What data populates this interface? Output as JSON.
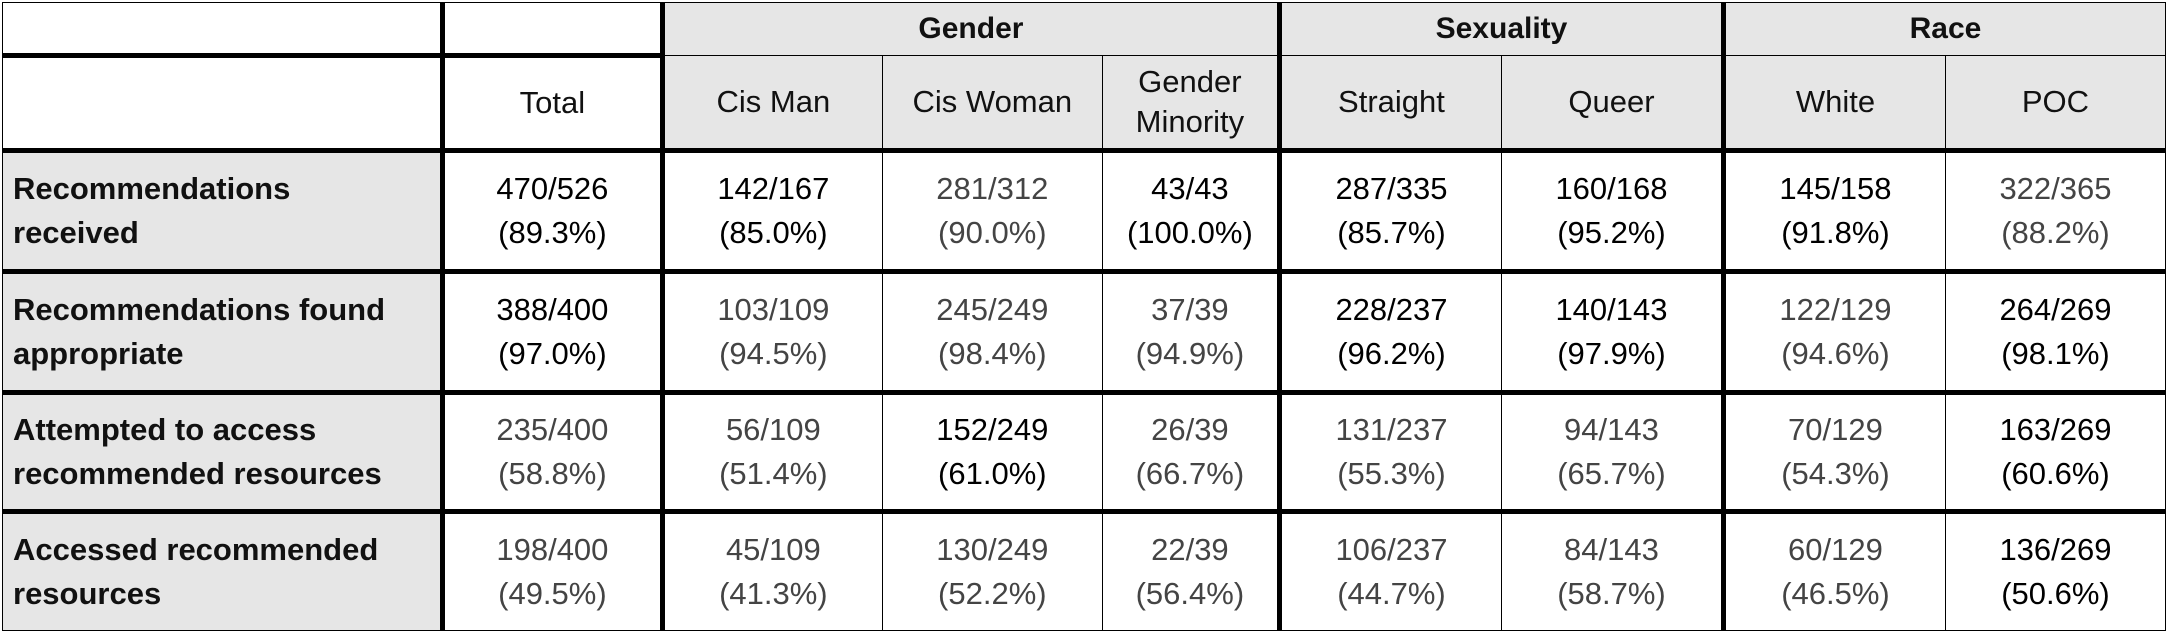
{
  "groups": {
    "gender": "Gender",
    "sexuality": "Sexuality",
    "race": "Race"
  },
  "columns": {
    "total": "Total",
    "cis_man": "Cis Man",
    "cis_woman": "Cis Woman",
    "gender_minority_1": "Gender",
    "gender_minority_2": "Minority",
    "straight": "Straight",
    "queer": "Queer",
    "white": "White",
    "poc": "POC"
  },
  "rows": [
    {
      "label_1": "Recommendations",
      "label_2": "received",
      "cells": [
        {
          "count": "470/526",
          "pct": "(89.3%)"
        },
        {
          "count": "142/167",
          "pct": "(85.0%)"
        },
        {
          "count": "281/312",
          "pct": "(90.0%)"
        },
        {
          "count": "43/43",
          "pct": "(100.0%)"
        },
        {
          "count": "287/335",
          "pct": "(85.7%)"
        },
        {
          "count": "160/168",
          "pct": "(95.2%)"
        },
        {
          "count": "145/158",
          "pct": "(91.8%)"
        },
        {
          "count": "322/365",
          "pct": "(88.2%)"
        }
      ]
    },
    {
      "label_1": "Recommendations found",
      "label_2": "appropriate",
      "cells": [
        {
          "count": "388/400",
          "pct": "(97.0%)"
        },
        {
          "count": "103/109",
          "pct": "(94.5%)"
        },
        {
          "count": "245/249",
          "pct": "(98.4%)"
        },
        {
          "count": "37/39",
          "pct": "(94.9%)"
        },
        {
          "count": "228/237",
          "pct": "(96.2%)"
        },
        {
          "count": "140/143",
          "pct": "(97.9%)"
        },
        {
          "count": "122/129",
          "pct": "(94.6%)"
        },
        {
          "count": "264/269",
          "pct": "(98.1%)"
        }
      ]
    },
    {
      "label_1": "Attempted to access",
      "label_2": "recommended resources",
      "cells": [
        {
          "count": "235/400",
          "pct": "(58.8%)"
        },
        {
          "count": "56/109",
          "pct": "(51.4%)"
        },
        {
          "count": "152/249",
          "pct": "(61.0%)"
        },
        {
          "count": "26/39",
          "pct": "(66.7%)"
        },
        {
          "count": "131/237",
          "pct": "(55.3%)"
        },
        {
          "count": "94/143",
          "pct": "(65.7%)"
        },
        {
          "count": "70/129",
          "pct": "(54.3%)"
        },
        {
          "count": "163/269",
          "pct": "(60.6%)"
        }
      ]
    },
    {
      "label_1": "Accessed recommended",
      "label_2": "resources",
      "cells": [
        {
          "count": "198/400",
          "pct": "(49.5%)"
        },
        {
          "count": "45/109",
          "pct": "(41.3%)"
        },
        {
          "count": "130/249",
          "pct": "(52.2%)"
        },
        {
          "count": "22/39",
          "pct": "(56.4%)"
        },
        {
          "count": "106/237",
          "pct": "(44.7%)"
        },
        {
          "count": "84/143",
          "pct": "(58.7%)"
        },
        {
          "count": "60/129",
          "pct": "(46.5%)"
        },
        {
          "count": "136/269",
          "pct": "(50.6%)"
        }
      ]
    }
  ]
}
